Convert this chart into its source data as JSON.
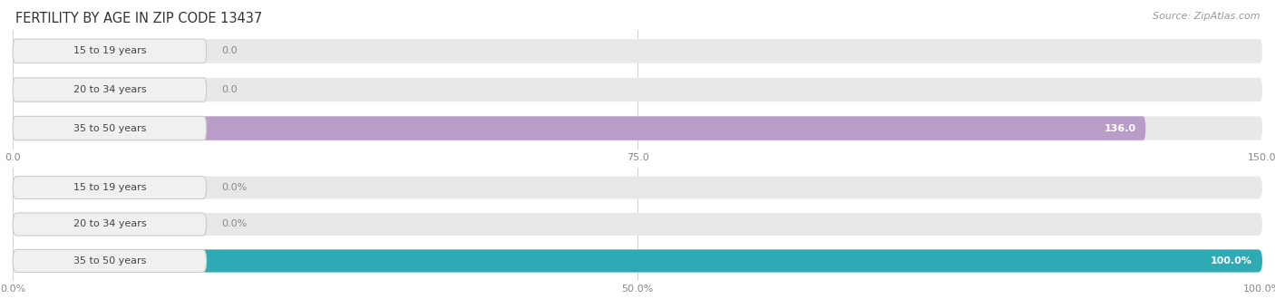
{
  "title": "FERTILITY BY AGE IN ZIP CODE 13437",
  "source": "Source: ZipAtlas.com",
  "top_chart": {
    "categories": [
      "15 to 19 years",
      "20 to 34 years",
      "35 to 50 years"
    ],
    "values": [
      0.0,
      0.0,
      136.0
    ],
    "xlim": [
      0,
      150
    ],
    "xticks": [
      0.0,
      75.0,
      150.0
    ],
    "xtick_labels": [
      "0.0",
      "75.0",
      "150.0"
    ],
    "bar_color": "#b99dc8",
    "value_labels": [
      "0.0",
      "0.0",
      "136.0"
    ]
  },
  "bottom_chart": {
    "categories": [
      "15 to 19 years",
      "20 to 34 years",
      "35 to 50 years"
    ],
    "values": [
      0.0,
      0.0,
      100.0
    ],
    "xlim": [
      0,
      100
    ],
    "xticks": [
      0.0,
      50.0,
      100.0
    ],
    "xtick_labels": [
      "0.0%",
      "50.0%",
      "100.0%"
    ],
    "bar_color": "#2eaab5",
    "value_labels": [
      "0.0%",
      "0.0%",
      "100.0%"
    ]
  },
  "bg_color": "#ffffff",
  "bar_bg_color": "#e8e8e8",
  "bar_height": 0.62,
  "label_fontsize": 8.0,
  "tick_fontsize": 8.0,
  "title_fontsize": 10.5,
  "source_fontsize": 8.0,
  "cat_label_fontsize": 8.0,
  "cat_label_color": "#444444",
  "grid_color": "#d0d0d0",
  "pill_bg_color": "#f0f0f0",
  "pill_edge_color": "#cccccc",
  "pill_color_top": "#b99dc8",
  "pill_color_bottom": "#2eaab5"
}
